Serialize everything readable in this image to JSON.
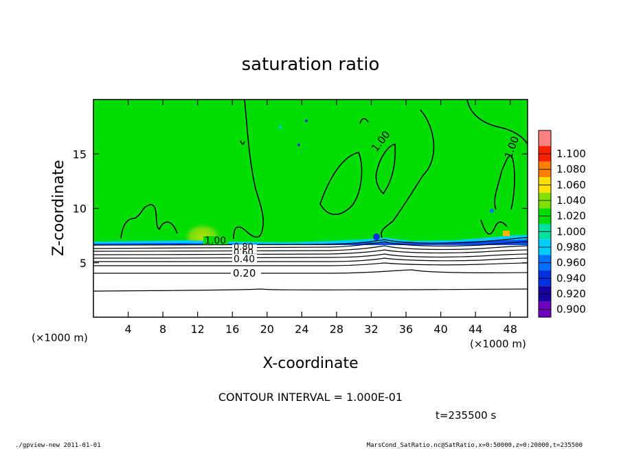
{
  "chart_data": {
    "type": "heatmap",
    "title": "saturation ratio",
    "xlabel": "X-coordinate",
    "ylabel": "Z-coordinate",
    "x_unit": "(×1000 m)",
    "y_unit": "(×1000 m)",
    "xlim": [
      0,
      50
    ],
    "ylim": [
      0,
      20
    ],
    "x_ticks": [
      4,
      8,
      12,
      16,
      20,
      24,
      28,
      32,
      36,
      40,
      44,
      48
    ],
    "y_ticks": [
      5,
      10,
      15
    ],
    "colorbar": {
      "levels": [
        0.9,
        0.92,
        0.94,
        0.96,
        0.98,
        1.0,
        1.02,
        1.04,
        1.06,
        1.08,
        1.1
      ],
      "labels": [
        "0.900",
        "0.920",
        "0.940",
        "0.960",
        "0.980",
        "1.000",
        "1.020",
        "1.040",
        "1.060",
        "1.080",
        "1.100"
      ],
      "colors": [
        "#7000c0",
        "#1800a0",
        "#0030e0",
        "#0070ff",
        "#00ccff",
        "#00e0a0",
        "#00dd00",
        "#80e000",
        "#ffe000",
        "#ff8000",
        "#ff2000",
        "#ff8080"
      ]
    },
    "contour_interval": "CONTOUR INTERVAL = 1.000E-01",
    "contour_labels": [
      "1.00",
      "0.80",
      "0.60",
      "0.40",
      "0.20",
      "1.00",
      "1.00"
    ],
    "contour_levels": [
      0.2,
      0.3,
      0.4,
      0.5,
      0.6,
      0.7,
      0.8,
      0.9,
      1.0
    ],
    "grid": false,
    "time_label": "t=235500 s"
  },
  "footer": {
    "left": "./gpview-new   2011-01-01",
    "right": "MarsCond_SatRatio.nc@SatRatio,x=0:50000,z=0:20000,t=235500"
  }
}
